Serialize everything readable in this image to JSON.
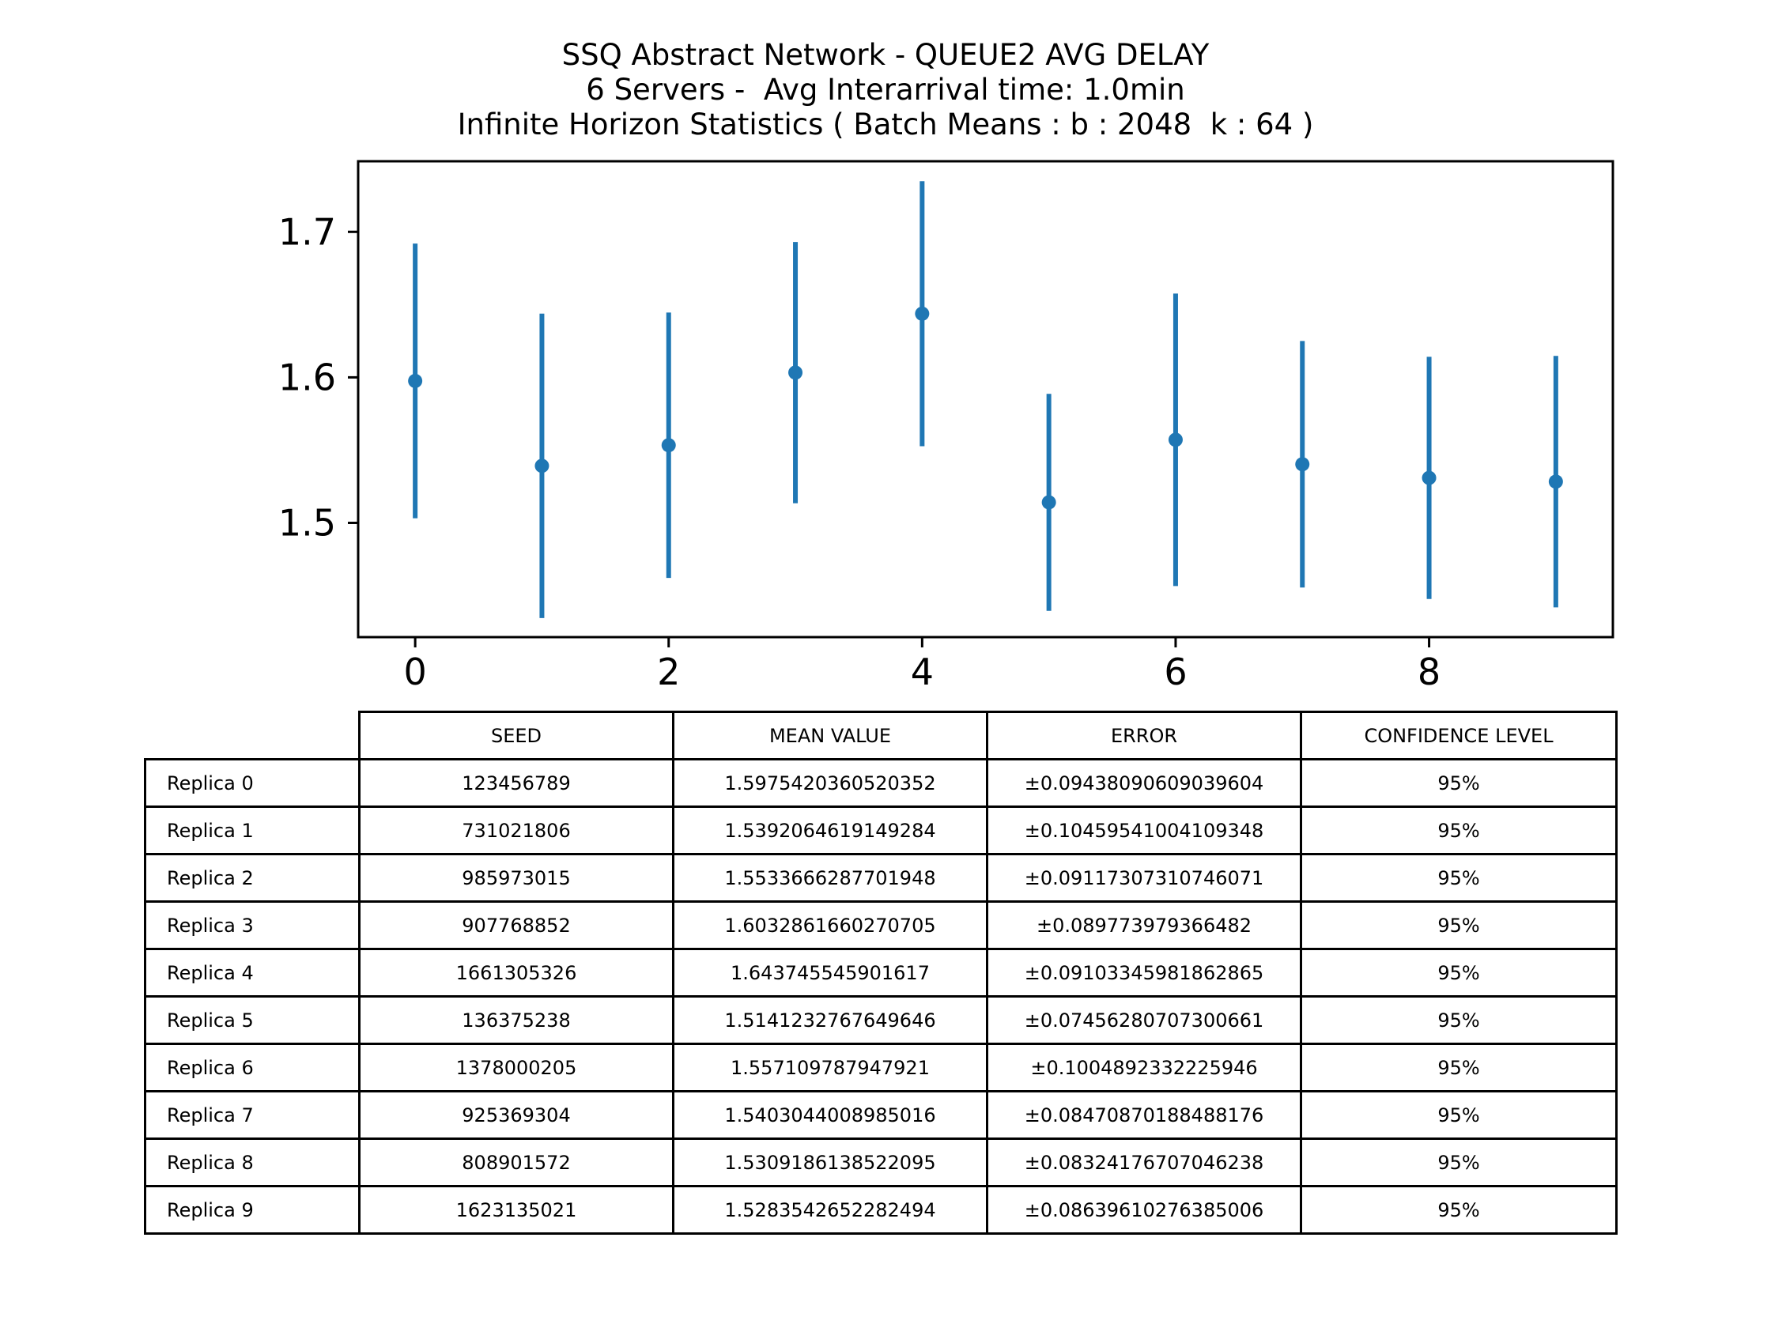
{
  "title": {
    "line1": "SSQ Abstract Network - QUEUE2 AVG DELAY",
    "line2": "6 Servers -  Avg Interarrival time: 1.0min",
    "line3": "Infinite Horizon Statistics ( Batch Means : b : 2048  k : 64 )"
  },
  "chart_data": {
    "type": "scatter",
    "subtype": "errorbar",
    "color": "#1f77b4",
    "x": [
      0,
      1,
      2,
      3,
      4,
      5,
      6,
      7,
      8,
      9
    ],
    "y": [
      1.5975420360520352,
      1.5392064619149284,
      1.5533666287701948,
      1.6032861660270705,
      1.643745545901617,
      1.5141232767649646,
      1.557109787947921,
      1.5403044008985016,
      1.5309186138522095,
      1.5283542652282494
    ],
    "yerr": [
      0.09438090609039604,
      0.10459541004109348,
      0.09117307310746071,
      0.089773979366482,
      0.09103345981862865,
      0.07456280707300661,
      0.1004892332225946,
      0.08470870188488176,
      0.08324176707046238,
      0.08639610276385006
    ],
    "xlim": [
      -0.45,
      9.45
    ],
    "ylim": [
      1.4215,
      1.7485
    ],
    "xticks": [
      0,
      2,
      4,
      6,
      8
    ],
    "xtick_labels": [
      "0",
      "2",
      "4",
      "6",
      "8"
    ],
    "yticks": [
      1.5,
      1.6,
      1.7
    ],
    "ytick_labels": [
      "1.5",
      "1.6",
      "1.7"
    ],
    "xlabel": "",
    "ylabel": "",
    "grid": false,
    "legend": "none"
  },
  "table": {
    "columns": [
      "SEED",
      "MEAN VALUE",
      "ERROR",
      "CONFIDENCE LEVEL"
    ],
    "rows": [
      {
        "label": "Replica 0",
        "seed": "123456789",
        "mean": "1.5975420360520352",
        "error": "±0.09438090609039604",
        "confidence": "95%"
      },
      {
        "label": "Replica 1",
        "seed": "731021806",
        "mean": "1.5392064619149284",
        "error": "±0.10459541004109348",
        "confidence": "95%"
      },
      {
        "label": "Replica 2",
        "seed": "985973015",
        "mean": "1.5533666287701948",
        "error": "±0.09117307310746071",
        "confidence": "95%"
      },
      {
        "label": "Replica 3",
        "seed": "907768852",
        "mean": "1.6032861660270705",
        "error": "±0.089773979366482",
        "confidence": "95%"
      },
      {
        "label": "Replica 4",
        "seed": "1661305326",
        "mean": "1.643745545901617",
        "error": "±0.09103345981862865",
        "confidence": "95%"
      },
      {
        "label": "Replica 5",
        "seed": "136375238",
        "mean": "1.5141232767649646",
        "error": "±0.07456280707300661",
        "confidence": "95%"
      },
      {
        "label": "Replica 6",
        "seed": "1378000205",
        "mean": "1.557109787947921",
        "error": "±0.1004892332225946",
        "confidence": "95%"
      },
      {
        "label": "Replica 7",
        "seed": "925369304",
        "mean": "1.5403044008985016",
        "error": "±0.08470870188488176",
        "confidence": "95%"
      },
      {
        "label": "Replica 8",
        "seed": "808901572",
        "mean": "1.5309186138522095",
        "error": "±0.08324176707046238",
        "confidence": "95%"
      },
      {
        "label": "Replica 9",
        "seed": "1623135021",
        "mean": "1.5283542652282494",
        "error": "±0.08639610276385006",
        "confidence": "95%"
      }
    ]
  }
}
